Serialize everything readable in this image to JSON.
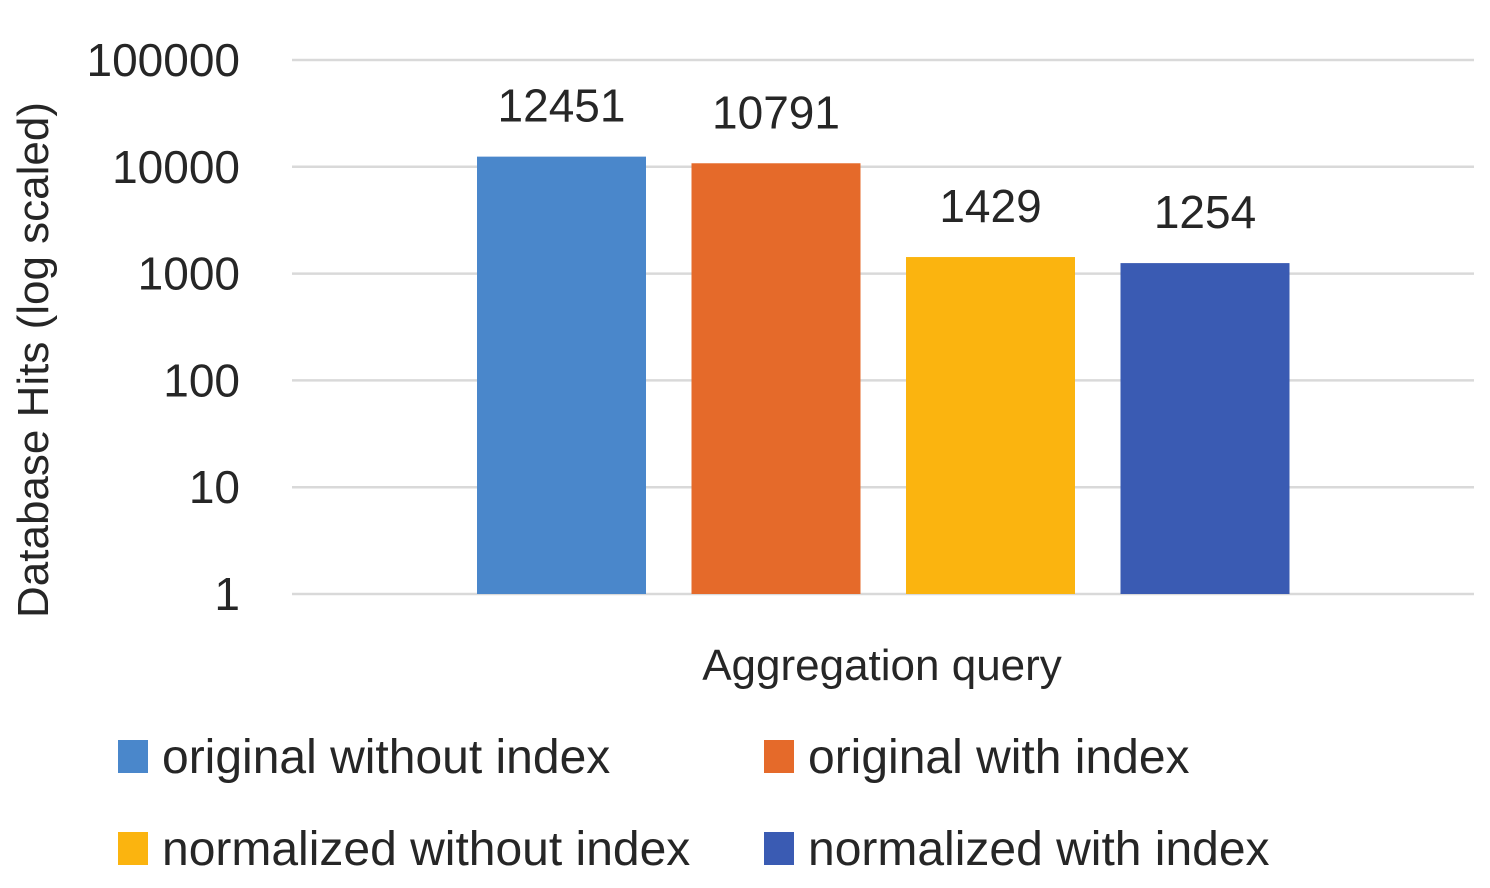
{
  "chart_data": {
    "type": "bar",
    "categories": [
      "Aggregation query"
    ],
    "xlabel": "Aggregation query",
    "ylabel": "Database Hits (log scaled)",
    "yscale": "log",
    "ylim": [
      1,
      100000
    ],
    "yticks": [
      "1",
      "10",
      "100",
      "1000",
      "10000",
      "100000"
    ],
    "grid": true,
    "legend_position": "bottom",
    "series": [
      {
        "name": "original without index",
        "values": [
          12451
        ],
        "label": "12451",
        "color": "#4a87cb"
      },
      {
        "name": "original with index",
        "values": [
          10791
        ],
        "label": "10791",
        "color": "#e56a2a"
      },
      {
        "name": "normalized without index",
        "values": [
          1429
        ],
        "label": "1429",
        "color": "#fbb40f"
      },
      {
        "name": "normalized with index",
        "values": [
          1254
        ],
        "label": "1254",
        "color": "#3a5bb3"
      }
    ]
  }
}
